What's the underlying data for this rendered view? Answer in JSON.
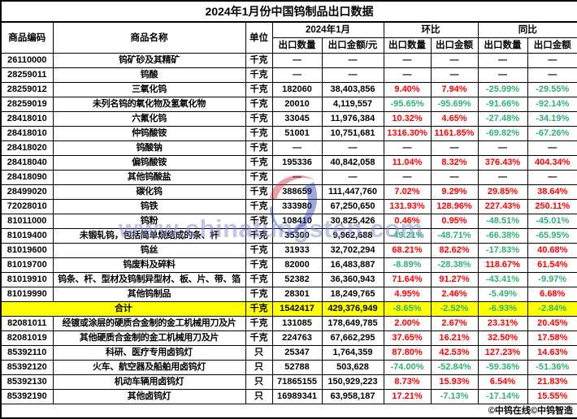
{
  "title": "2024年1月份中国钨制品出口数据",
  "colors": {
    "positive": "#fe0000",
    "negative": "#2fb176",
    "total_row_bg": "#ffff00",
    "watermark": "#7d8cd2",
    "logo_red": "#cc2233",
    "logo_blue": "#2233aa"
  },
  "header": {
    "code": "商品编码",
    "name": "商品名称",
    "unit": "单位",
    "groups": [
      {
        "label": "2024年1月",
        "cols": [
          "出口数量",
          "出口金额/元"
        ]
      },
      {
        "label": "环比",
        "cols": [
          "出口数量",
          "出口金额"
        ]
      },
      {
        "label": "同比",
        "cols": [
          "出口数量",
          "出口金额"
        ]
      }
    ]
  },
  "rows": [
    {
      "code": "26110000",
      "name": "钨矿砂及其精矿",
      "unit": "千克",
      "qty": "—",
      "amt": "—",
      "mom_qty": "—",
      "mom_amt": "—",
      "yoy_qty": "—",
      "yoy_amt": "—"
    },
    {
      "code": "28259011",
      "name": "钨酸",
      "unit": "千克",
      "qty": "—",
      "amt": "—",
      "mom_qty": "—",
      "mom_amt": "—",
      "yoy_qty": "—",
      "yoy_amt": "—"
    },
    {
      "code": "28259012",
      "name": "三氧化钨",
      "unit": "千克",
      "qty": "182060",
      "amt": "38,403,856",
      "mom_qty": "9.40%",
      "mom_amt": "7.94%",
      "yoy_qty": "-25.99%",
      "yoy_amt": "-29.55%"
    },
    {
      "code": "28259019",
      "name": "未列名钨的氧化物及氢氧化物",
      "unit": "千克",
      "qty": "20010",
      "amt": "4,119,557",
      "mom_qty": "-95.65%",
      "mom_amt": "-95.69%",
      "yoy_qty": "-91.66%",
      "yoy_amt": "-92.14%"
    },
    {
      "code": "28418010",
      "name": "六氟化钨",
      "unit": "千克",
      "qty": "33045",
      "amt": "11,976,384",
      "mom_qty": "10.32%",
      "mom_amt": "4.65%",
      "yoy_qty": "-27.48%",
      "yoy_amt": "-34.19%"
    },
    {
      "code": "28418010",
      "name": "仲钨酸铵",
      "unit": "千克",
      "qty": "51001",
      "amt": "10,751,681",
      "mom_qty": "1316.30%",
      "mom_amt": "1161.85%",
      "yoy_qty": "-69.82%",
      "yoy_amt": "-67.26%"
    },
    {
      "code": "28418020",
      "name": "钨酸钠",
      "unit": "千克",
      "qty": "—",
      "amt": "—",
      "mom_qty": "—",
      "mom_amt": "—",
      "yoy_qty": "—",
      "yoy_amt": "—"
    },
    {
      "code": "28418040",
      "name": "偏钨酸铵",
      "unit": "千克",
      "qty": "195336",
      "amt": "40,842,058",
      "mom_qty": "11.04%",
      "mom_amt": "8.32%",
      "yoy_qty": "376.43%",
      "yoy_amt": "404.34%"
    },
    {
      "code": "28418090",
      "name": "其他钨酸盐",
      "unit": "千克",
      "qty": "—",
      "amt": "—",
      "mom_qty": "—",
      "mom_amt": "—",
      "yoy_qty": "—",
      "yoy_amt": "—"
    },
    {
      "code": "28499020",
      "name": "碳化钨",
      "unit": "千克",
      "qty": "388659",
      "amt": "111,447,760",
      "mom_qty": "7.02%",
      "mom_amt": "9.29%",
      "yoy_qty": "29.85%",
      "yoy_amt": "38.64%"
    },
    {
      "code": "72028010",
      "name": "钨铁",
      "unit": "千克",
      "qty": "333980",
      "amt": "67,250,650",
      "mom_qty": "131.93%",
      "mom_amt": "128.96%",
      "yoy_qty": "227.43%",
      "yoy_amt": "250.11%"
    },
    {
      "code": "81011000",
      "name": "钨粉",
      "unit": "千克",
      "qty": "108410",
      "amt": "30,825,426",
      "mom_qty": "0.46%",
      "mom_amt": "0.95%",
      "yoy_qty": "-48.51%",
      "yoy_amt": "-45.01%"
    },
    {
      "code": "81019400",
      "name": "未锻轧钨，包括简单烧结成的条、杆",
      "unit": "千克",
      "qty": "35300",
      "amt": "9,962,688",
      "mom_qty": "-49.21%",
      "mom_amt": "-48.71%",
      "yoy_qty": "-66.38%",
      "yoy_amt": "-65.95%"
    },
    {
      "code": "81019600",
      "name": "钨丝",
      "unit": "千克",
      "qty": "31933",
      "amt": "32,702,294",
      "mom_qty": "68.21%",
      "mom_amt": "82.62%",
      "yoy_qty": "-17.83%",
      "yoy_amt": "40.68%"
    },
    {
      "code": "81019700",
      "name": "钨废料及碎料",
      "unit": "千克",
      "qty": "82000",
      "amt": "16,483,887",
      "mom_qty": "-8.89%",
      "mom_amt": "-28.38%",
      "yoy_qty": "118.67%",
      "yoy_amt": "61.54%"
    },
    {
      "code": "81019910",
      "name": "钨条、杆、型材及钨制异型材、板、片、带、箔",
      "unit": "千克",
      "qty": "52382",
      "amt": "36,360,943",
      "mom_qty": "71.64%",
      "mom_amt": "91.27%",
      "yoy_qty": "-43.41%",
      "yoy_amt": "-9.97%"
    },
    {
      "code": "81019990",
      "name": "其他钨制品",
      "unit": "千克",
      "qty": "28301",
      "amt": "18,249,765",
      "mom_qty": "4.95%",
      "mom_amt": "2.46%",
      "yoy_qty": "-5.49%",
      "yoy_amt": "6.68%"
    },
    {
      "total": true,
      "code": "",
      "name": "合计",
      "unit": "千克",
      "qty": "1542417",
      "amt": "429,376,949",
      "mom_qty": "-8.65%",
      "mom_amt": "-2.52%",
      "yoy_qty": "-6.93%",
      "yoy_amt": "-2.84%"
    },
    {
      "code": "82081011",
      "name": "经镀或涂层的硬质合金制的金工机械用刀及片",
      "unit": "千克",
      "qty": "131085",
      "amt": "178,649,785",
      "mom_qty": "2.00%",
      "mom_amt": "2.67%",
      "yoy_qty": "23.31%",
      "yoy_amt": "20.45%"
    },
    {
      "code": "82081019",
      "name": "其他硬质合金制的金工机械用刀及片",
      "unit": "千克",
      "qty": "224763",
      "amt": "67,662,295",
      "mom_qty": "37.65%",
      "mom_amt": "16.21%",
      "yoy_qty": "32.50%",
      "yoy_amt": "17.58%"
    },
    {
      "code": "85392110",
      "name": "科研、医疗专用卤钨灯",
      "unit": "只",
      "qty": "25347",
      "amt": "1,764,359",
      "mom_qty": "87.80%",
      "mom_amt": "42.53%",
      "yoy_qty": "127.23%",
      "yoy_amt": "14.63%"
    },
    {
      "code": "85392120",
      "name": "火车、航空器及船舶用卤钨灯",
      "unit": "只",
      "qty": "52788",
      "amt": "503,628",
      "mom_qty": "-74.00%",
      "mom_amt": "-52.84%",
      "yoy_qty": "-59.36%",
      "yoy_amt": "-51.36%"
    },
    {
      "code": "85392130",
      "name": "机动车辆用卤钨灯",
      "unit": "只",
      "qty": "71865155",
      "amt": "150,929,223",
      "mom_qty": "8.73%",
      "mom_amt": "15.93%",
      "yoy_qty": "6.54%",
      "yoy_amt": "21.83%"
    },
    {
      "code": "85392190",
      "name": "其他卤钨灯",
      "unit": "只",
      "qty": "16989341",
      "amt": "63,958,187",
      "mom_qty": "17.21%",
      "mom_amt": "-7.13%",
      "yoy_qty": "-17.14%",
      "yoy_amt": "15.55%"
    }
  ],
  "watermark": {
    "url_text": "www.chinatungsten.com",
    "logo_name": "chinatungsten-logo"
  },
  "footer": {
    "copyright": "©中钨在线©中钨智造"
  }
}
